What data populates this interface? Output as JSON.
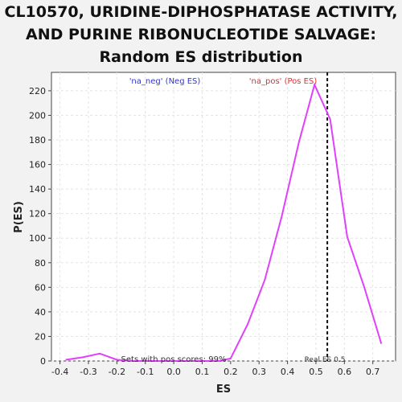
{
  "title_lines": [
    "CL10570, URIDINE-DIPHOSPHATASE ACTIVITY,",
    "AND PURINE RIBONUCLEOTIDE SALVAGE:",
    "Random ES distribution"
  ],
  "chart_data": {
    "type": "line",
    "xlabel": "ES",
    "ylabel": "P(ES)",
    "xlim": [
      -0.43,
      0.78
    ],
    "ylim": [
      0,
      235
    ],
    "xticks": [
      -0.4,
      -0.3,
      -0.2,
      -0.1,
      0.0,
      0.1,
      0.2,
      0.3,
      0.4,
      0.5,
      0.6,
      0.7
    ],
    "xtick_labels": [
      "-0.4",
      "-0.3",
      "-0.2",
      "-0.1",
      "0.0",
      "0.1",
      "0.2",
      "0.3",
      "0.4",
      "0.5",
      "0.6",
      "0.7"
    ],
    "yticks": [
      0,
      20,
      40,
      60,
      80,
      100,
      120,
      140,
      160,
      180,
      200,
      220
    ],
    "ytick_labels": [
      "0",
      "20",
      "40",
      "60",
      "80",
      "100",
      "120",
      "140",
      "160",
      "180",
      "200",
      "220"
    ],
    "grid": true,
    "series": [
      {
        "color": "#e040fb",
        "x": [
          -0.38,
          -0.32,
          -0.26,
          -0.2,
          -0.14,
          -0.08,
          -0.02,
          0.04,
          0.1,
          0.16,
          0.2,
          0.26,
          0.32,
          0.38,
          0.44,
          0.495,
          0.55,
          0.61,
          0.67,
          0.73
        ],
        "y": [
          1,
          3,
          6,
          1,
          0,
          0,
          0,
          0,
          0,
          0,
          2,
          30,
          66,
          118,
          178,
          225,
          197,
          101,
          60,
          14
        ]
      }
    ],
    "reference_line": {
      "x": 0.54,
      "style": "dashed",
      "color": "#111111",
      "label": "Real ES 0.5"
    },
    "annotations": {
      "neg_label": "'na_neg' (Neg ES)",
      "neg_color": "#3333cc",
      "pos_label": "'na_pos' (Pos ES)",
      "pos_color": "#e03030",
      "sets_text": "Sets with pos scores: 99%"
    }
  }
}
